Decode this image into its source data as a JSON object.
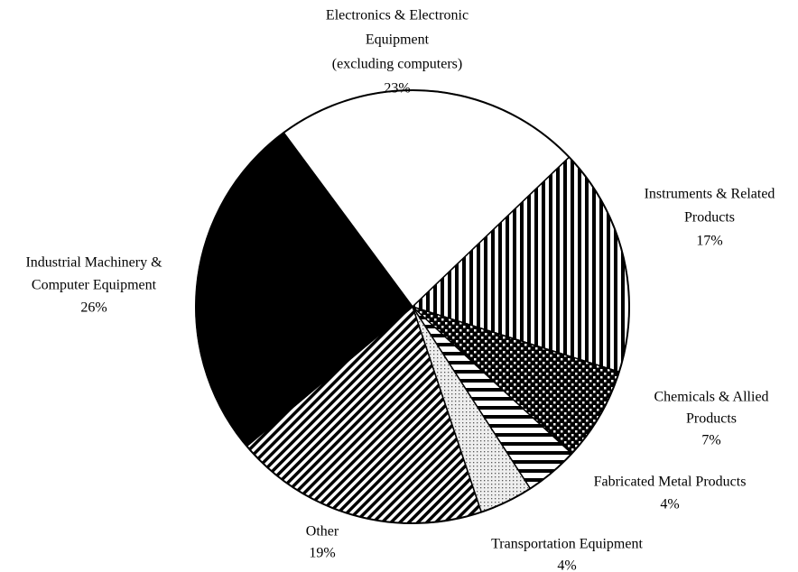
{
  "chart_data": {
    "type": "pie",
    "categories": [
      [
        "Electronics & Electronic",
        "Equipment",
        "(excluding computers)"
      ],
      [
        "Instruments & Related",
        "Products"
      ],
      [
        "Chemicals & Allied",
        "Products"
      ],
      [
        "Fabricated Metal Products"
      ],
      [
        "Transportation Equipment"
      ],
      [
        "Other"
      ],
      [
        "Industrial Machinery &",
        "Computer Equipment"
      ]
    ],
    "values": [
      23,
      17,
      7,
      4,
      4,
      19,
      26
    ],
    "value_labels": [
      "23%",
      "17%",
      "7%",
      "4%",
      "4%",
      "19%",
      "26%"
    ]
  }
}
